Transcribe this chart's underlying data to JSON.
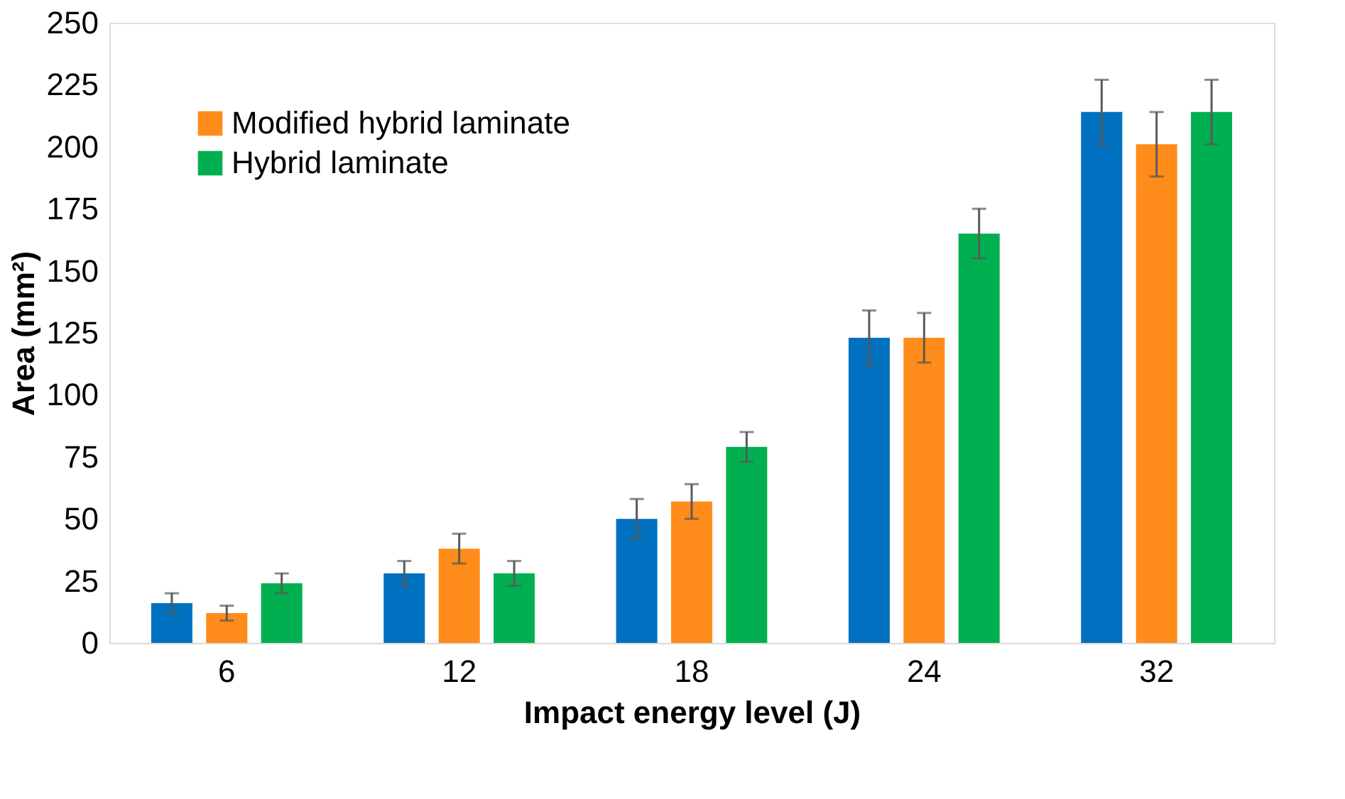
{
  "chart_data": {
    "type": "bar",
    "xlabel": "Impact energy level (J)",
    "ylabel": "Area (mm²)",
    "categories": [
      "6",
      "12",
      "18",
      "24",
      "32"
    ],
    "series": [
      {
        "color": "#0070c0",
        "values": [
          16,
          28,
          50,
          123,
          214
        ],
        "errors": [
          4,
          5,
          8,
          11,
          13
        ]
      },
      {
        "name": "Modified hybrid laminate",
        "color": "#ff8c1a",
        "values": [
          12,
          38,
          57,
          123,
          201
        ],
        "errors": [
          3,
          6,
          7,
          10,
          13
        ]
      },
      {
        "name": "Hybrid laminate",
        "color": "#00b050",
        "values": [
          24,
          28,
          79,
          165,
          214
        ],
        "errors": [
          4,
          5,
          6,
          10,
          13
        ]
      }
    ],
    "ylim": [
      0,
      250
    ],
    "yticks": [
      0,
      25,
      50,
      75,
      100,
      125,
      150,
      175,
      200,
      225,
      250
    ],
    "grid": false,
    "legend": "top left"
  }
}
